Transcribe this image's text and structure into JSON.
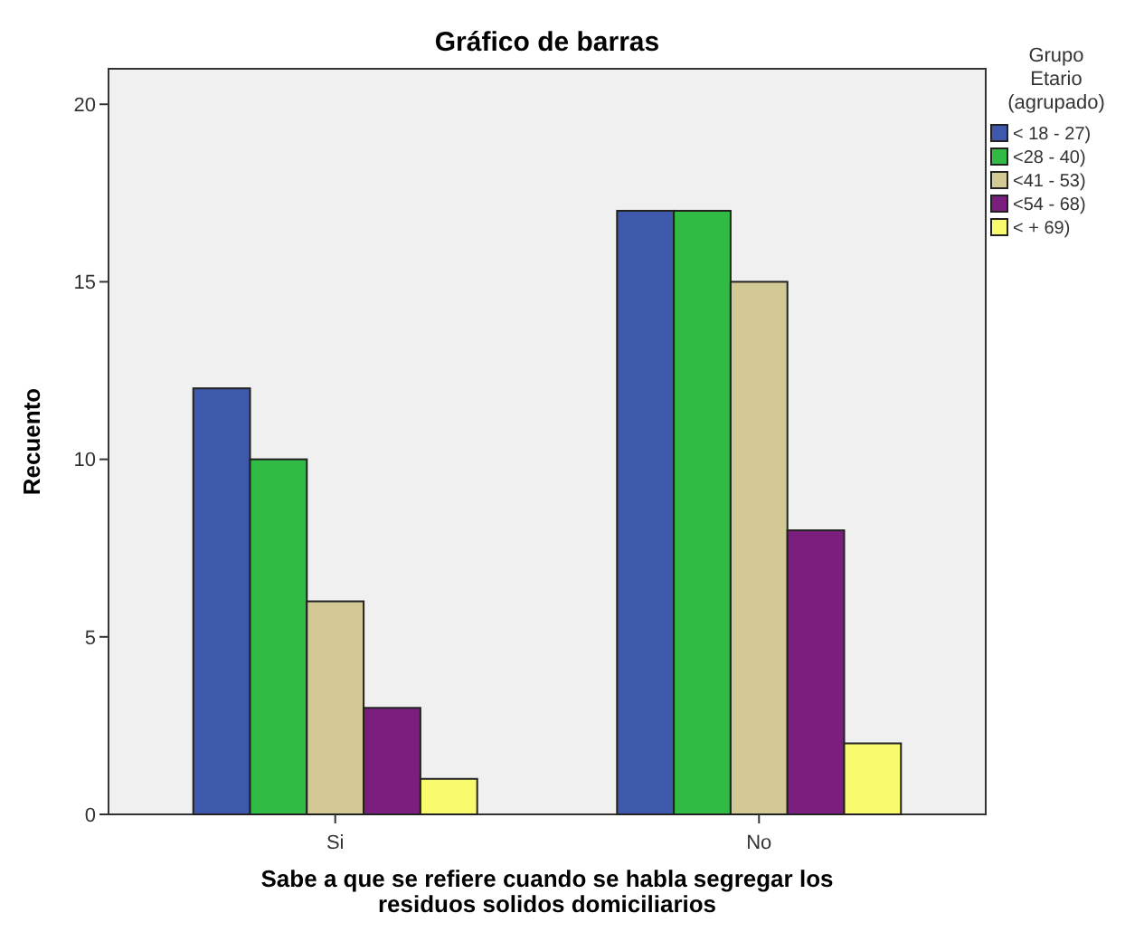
{
  "chart_data": {
    "type": "bar",
    "title": "Gráfico de barras",
    "xlabel": "Sabe a que se refiere cuando se habla segregar los residuos solidos domiciliarios",
    "ylabel": "Recuento",
    "legend_title": "Grupo Etario (agrupado)",
    "categories": [
      "Si",
      "No"
    ],
    "series": [
      {
        "name": "< 18 - 27)",
        "color": "#3e58ac",
        "values": [
          12,
          17
        ]
      },
      {
        "name": "<28 - 40)",
        "color": "#2fbb44",
        "values": [
          10,
          17
        ]
      },
      {
        "name": "<41 - 53)",
        "color": "#d2c995",
        "values": [
          6,
          15
        ]
      },
      {
        "name": "<54 - 68)",
        "color": "#7b1f7e",
        "values": [
          3,
          8
        ]
      },
      {
        "name": "< + 69)",
        "color": "#fafa6e",
        "values": [
          1,
          2
        ]
      }
    ],
    "ylim": [
      0,
      21
    ],
    "yticks": [
      0,
      5,
      10,
      15,
      20
    ],
    "grid": false,
    "legend": "top right"
  }
}
